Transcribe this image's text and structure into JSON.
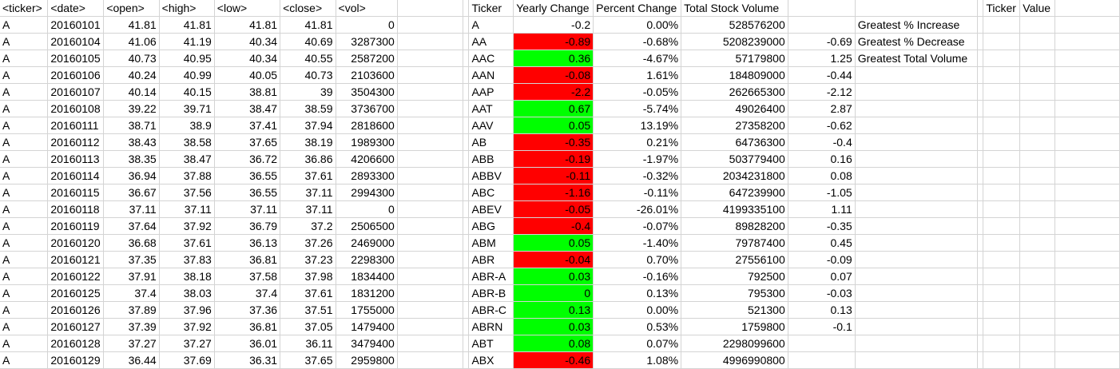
{
  "headers": [
    "<ticker>",
    "<date>",
    "<open>",
    "<high>",
    "<low>",
    "<close>",
    "<vol>",
    "",
    "",
    "Ticker",
    "Yearly Change",
    "Percent Change",
    "Total Stock Volume",
    "",
    "",
    "",
    "Ticker",
    "Value",
    ""
  ],
  "stock_rows": [
    [
      "A",
      "20160101",
      "41.81",
      "41.81",
      "41.81",
      "41.81",
      "0"
    ],
    [
      "A",
      "20160104",
      "41.06",
      "41.19",
      "40.34",
      "40.69",
      "3287300"
    ],
    [
      "A",
      "20160105",
      "40.73",
      "40.95",
      "40.34",
      "40.55",
      "2587200"
    ],
    [
      "A",
      "20160106",
      "40.24",
      "40.99",
      "40.05",
      "40.73",
      "2103600"
    ],
    [
      "A",
      "20160107",
      "40.14",
      "40.15",
      "38.81",
      "39",
      "3504300"
    ],
    [
      "A",
      "20160108",
      "39.22",
      "39.71",
      "38.47",
      "38.59",
      "3736700"
    ],
    [
      "A",
      "20160111",
      "38.71",
      "38.9",
      "37.41",
      "37.94",
      "2818600"
    ],
    [
      "A",
      "20160112",
      "38.43",
      "38.58",
      "37.65",
      "38.19",
      "1989300"
    ],
    [
      "A",
      "20160113",
      "38.35",
      "38.47",
      "36.72",
      "36.86",
      "4206600"
    ],
    [
      "A",
      "20160114",
      "36.94",
      "37.88",
      "36.55",
      "37.61",
      "2893300"
    ],
    [
      "A",
      "20160115",
      "36.67",
      "37.56",
      "36.55",
      "37.11",
      "2994300"
    ],
    [
      "A",
      "20160118",
      "37.11",
      "37.11",
      "37.11",
      "37.11",
      "0"
    ],
    [
      "A",
      "20160119",
      "37.64",
      "37.92",
      "36.79",
      "37.2",
      "2506500"
    ],
    [
      "A",
      "20160120",
      "36.68",
      "37.61",
      "36.13",
      "37.26",
      "2469000"
    ],
    [
      "A",
      "20160121",
      "37.35",
      "37.83",
      "36.81",
      "37.23",
      "2298300"
    ],
    [
      "A",
      "20160122",
      "37.91",
      "38.18",
      "37.58",
      "37.98",
      "1834400"
    ],
    [
      "A",
      "20160125",
      "37.4",
      "38.03",
      "37.4",
      "37.61",
      "1831200"
    ],
    [
      "A",
      "20160126",
      "37.89",
      "37.96",
      "37.36",
      "37.51",
      "1755000"
    ],
    [
      "A",
      "20160127",
      "37.39",
      "37.92",
      "36.81",
      "37.05",
      "1479400"
    ],
    [
      "A",
      "20160128",
      "37.27",
      "37.27",
      "36.01",
      "36.11",
      "3479400"
    ],
    [
      "A",
      "20160129",
      "36.44",
      "37.69",
      "36.31",
      "37.65",
      "2959800"
    ]
  ],
  "summary_rows": [
    {
      "ticker": "A",
      "change": "-0.2",
      "pct": "0.00%",
      "vol": "528576200",
      "color": "none"
    },
    {
      "ticker": "AA",
      "change": "-0.89",
      "pct": "-0.68%",
      "vol": "5208239000",
      "color": "neg"
    },
    {
      "ticker": "AAC",
      "change": "0.36",
      "pct": "-4.67%",
      "vol": "57179800",
      "color": "pos"
    },
    {
      "ticker": "AAN",
      "change": "-0.08",
      "pct": "1.61%",
      "vol": "184809000",
      "color": "neg"
    },
    {
      "ticker": "AAP",
      "change": "-2.2",
      "pct": "-0.05%",
      "vol": "262665300",
      "color": "neg"
    },
    {
      "ticker": "AAT",
      "change": "0.67",
      "pct": "-5.74%",
      "vol": "49026400",
      "color": "pos"
    },
    {
      "ticker": "AAV",
      "change": "0.05",
      "pct": "13.19%",
      "vol": "27358200",
      "color": "pos"
    },
    {
      "ticker": "AB",
      "change": "-0.35",
      "pct": "0.21%",
      "vol": "64736300",
      "color": "neg"
    },
    {
      "ticker": "ABB",
      "change": "-0.19",
      "pct": "-1.97%",
      "vol": "503779400",
      "color": "neg"
    },
    {
      "ticker": "ABBV",
      "change": "-0.11",
      "pct": "-0.32%",
      "vol": "2034231800",
      "color": "neg"
    },
    {
      "ticker": "ABC",
      "change": "-1.16",
      "pct": "-0.11%",
      "vol": "647239900",
      "color": "neg"
    },
    {
      "ticker": "ABEV",
      "change": "-0.05",
      "pct": "-26.01%",
      "vol": "4199335100",
      "color": "neg"
    },
    {
      "ticker": "ABG",
      "change": "-0.4",
      "pct": "-0.07%",
      "vol": "89828200",
      "color": "neg"
    },
    {
      "ticker": "ABM",
      "change": "0.05",
      "pct": "-1.40%",
      "vol": "79787400",
      "color": "pos"
    },
    {
      "ticker": "ABR",
      "change": "-0.04",
      "pct": "0.70%",
      "vol": "27556100",
      "color": "neg"
    },
    {
      "ticker": "ABR-A",
      "change": "0.03",
      "pct": "-0.16%",
      "vol": "792500",
      "color": "pos"
    },
    {
      "ticker": "ABR-B",
      "change": "0",
      "pct": "0.13%",
      "vol": "795300",
      "color": "pos"
    },
    {
      "ticker": "ABR-C",
      "change": "0.13",
      "pct": "0.00%",
      "vol": "521300",
      "color": "pos"
    },
    {
      "ticker": "ABRN",
      "change": "0.03",
      "pct": "0.53%",
      "vol": "1759800",
      "color": "pos"
    },
    {
      "ticker": "ABT",
      "change": "0.08",
      "pct": "0.07%",
      "vol": "2298099600",
      "color": "pos"
    },
    {
      "ticker": "ABX",
      "change": "-0.46",
      "pct": "1.08%",
      "vol": "4996990800",
      "color": "neg"
    }
  ],
  "extra_values": [
    "",
    "-0.69",
    "1.25",
    "-0.44",
    "-2.12",
    "2.87",
    "-0.62",
    "-0.4",
    "0.16",
    "0.08",
    "-1.05",
    "1.11",
    "-0.35",
    "0.45",
    "-0.09",
    "0.07",
    "-0.03",
    "0.13",
    "-0.1",
    "",
    ""
  ],
  "greatest_labels": [
    "Greatest % Increase",
    "Greatest % Decrease",
    "Greatest Total Volume"
  ],
  "colors": {
    "positive": "#00ff00",
    "negative": "#ff0000",
    "gridline": "#d4d4d4"
  }
}
